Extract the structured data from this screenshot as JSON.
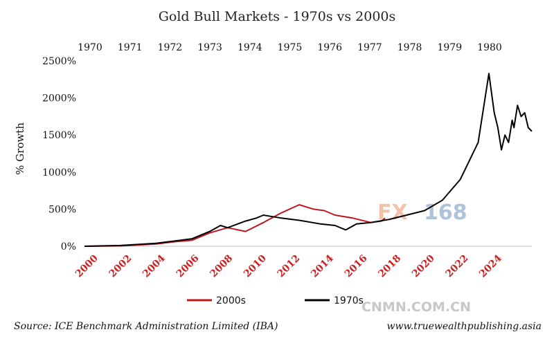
{
  "chart_data": {
    "type": "line",
    "title": "Gold Bull Markets - 1970s vs 2000s",
    "ylabel": "% Growth",
    "xlabel": "",
    "ylim": [
      0,
      2500
    ],
    "yticks": [
      0,
      500,
      1000,
      1500,
      2000,
      2500
    ],
    "ytick_labels": [
      "0%",
      "500%",
      "1000%",
      "1500%",
      "2000%",
      "2500%"
    ],
    "top_axis": {
      "labels": [
        "1970",
        "1971",
        "1972",
        "1973",
        "1974",
        "1975",
        "1976",
        "1977",
        "1978",
        "1979",
        "1980"
      ],
      "positions": [
        0,
        1,
        2,
        3,
        4,
        5,
        6,
        7,
        8,
        9,
        10
      ]
    },
    "bottom_axis": {
      "labels": [
        "2000",
        "2002",
        "2004",
        "2006",
        "2008",
        "2010",
        "2012",
        "2014",
        "2016",
        "2018",
        "2020",
        "2022",
        "2024"
      ],
      "positions": [
        0,
        1,
        2,
        3,
        4,
        5,
        6,
        7,
        8,
        9,
        10,
        11,
        12
      ]
    },
    "x_range": [
      0,
      12.5
    ],
    "series": [
      {
        "name": "2000s",
        "color": "#c0171d",
        "x": [
          0,
          1,
          2,
          2.5,
          3,
          3.5,
          4,
          4.5,
          5,
          5.5,
          6,
          6.4,
          6.7,
          7,
          7.5,
          8,
          8.3,
          8.4
        ],
        "y": [
          0,
          5,
          30,
          60,
          80,
          180,
          250,
          200,
          320,
          450,
          560,
          500,
          480,
          420,
          380,
          320,
          340,
          380
        ]
      },
      {
        "name": "1970s",
        "color": "#000000",
        "x": [
          0,
          1,
          2,
          3,
          3.5,
          3.8,
          4,
          4.5,
          4.8,
          5,
          5.5,
          6,
          6.6,
          7,
          7.3,
          7.6,
          8,
          8.5,
          9,
          9.5,
          10,
          10.5,
          11,
          11.3,
          11.45,
          11.55,
          11.65,
          11.75,
          11.85,
          11.95,
          12,
          12.1,
          12.2,
          12.3,
          12.4,
          12.5
        ],
        "y": [
          0,
          10,
          40,
          100,
          200,
          280,
          250,
          340,
          380,
          420,
          380,
          350,
          300,
          280,
          220,
          300,
          320,
          360,
          420,
          480,
          620,
          900,
          1400,
          2330,
          1800,
          1600,
          1300,
          1500,
          1400,
          1700,
          1600,
          1900,
          1750,
          1800,
          1600,
          1550
        ]
      }
    ],
    "legend": [
      "2000s",
      "1970s"
    ],
    "legend_position": "bottom",
    "grid": false
  },
  "source_text": "Source: ICE Benchmark Administration Limited (IBA)",
  "website_text": "www.truewealthpublishing.asia",
  "watermark_fx": "FX168",
  "watermark_cnmn": "CNMN.COM.CN"
}
